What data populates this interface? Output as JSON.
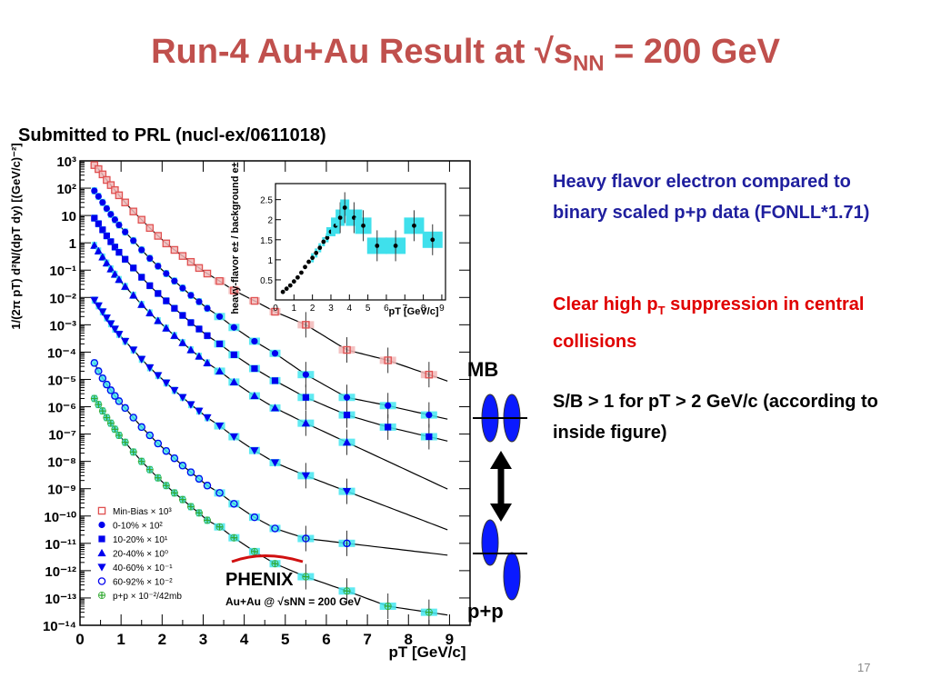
{
  "slide": {
    "title": "Run-4 Au+Au Result at √s",
    "title_sub": "NN",
    "title_tail": " = 200 GeV",
    "submitted": "Submitted to PRL (nucl-ex/0611018)",
    "note_blue": "Heavy flavor electron compared to binary scaled p+p data (FONLL*1.71)",
    "note_red_pre": "Clear high p",
    "note_red_sub": "T",
    "note_red_post": " suppression in central collisions",
    "note_black": "S/B > 1 for pT > 2 GeV/c (according to inside figure)",
    "label_mb": "MB",
    "label_pp": "p+p",
    "page_number": "17",
    "colors": {
      "title": "#c0504d",
      "blue_note": "#1f1f9e",
      "red_note": "#e00000",
      "nucleus": "#0a1aff"
    }
  },
  "chart_data": [
    {
      "type": "scatter",
      "log_y": true,
      "xlim": [
        0,
        9.5
      ],
      "ylim": [
        1e-14,
        1000.0
      ],
      "x_ticks": [
        "0",
        "1",
        "2",
        "3",
        "4",
        "5",
        "6",
        "7",
        "8",
        "9"
      ],
      "y_ticks": [
        "10⁻¹⁴",
        "10⁻¹³",
        "10⁻¹²",
        "10⁻¹¹",
        "10⁻¹⁰",
        "10⁻⁹",
        "10⁻⁸",
        "10⁻⁷",
        "10⁻⁶",
        "10⁻⁵",
        "10⁻⁴",
        "10⁻³",
        "10⁻²",
        "10⁻¹",
        "1",
        "10",
        "10²",
        "10³"
      ],
      "xlabel": "pT [GeV/c]",
      "ylabel": "1/(2π pT) d²N/(dpT dy) [(GeV/c)⁻²]",
      "experiment": "PHENIX",
      "system": "Au+Au @ √sNN = 200 GeV",
      "legend_position": "bottom-left",
      "series": [
        {
          "name": "Min-Bias × 10³",
          "marker": "open-square",
          "color": "#e05050",
          "x": [
            0.35,
            0.45,
            0.55,
            0.65,
            0.75,
            0.85,
            0.95,
            1.1,
            1.3,
            1.5,
            1.7,
            1.9,
            2.1,
            2.3,
            2.5,
            2.7,
            2.9,
            3.1,
            3.4,
            3.75,
            4.25,
            4.75,
            5.5,
            6.5,
            7.5,
            8.5
          ],
          "y": [
            700,
            500,
            320,
            200,
            130,
            85,
            55,
            30,
            14,
            7,
            3.5,
            1.8,
            0.95,
            0.55,
            0.33,
            0.2,
            0.12,
            0.075,
            0.04,
            0.018,
            0.0075,
            0.003,
            0.001,
            0.00012,
            5e-05,
            1.5e-05
          ]
        },
        {
          "name": "0-10% × 10²",
          "marker": "filled-circle",
          "color": "#0000ee",
          "x": [
            0.35,
            0.45,
            0.55,
            0.65,
            0.75,
            0.85,
            0.95,
            1.1,
            1.3,
            1.5,
            1.7,
            1.9,
            2.1,
            2.3,
            2.5,
            2.7,
            2.9,
            3.1,
            3.4,
            3.75,
            4.25,
            4.75,
            5.5,
            6.5,
            7.5,
            8.5
          ],
          "y": [
            80,
            50,
            30,
            18,
            11,
            7,
            4.5,
            2.5,
            1.2,
            0.55,
            0.27,
            0.14,
            0.075,
            0.04,
            0.022,
            0.012,
            0.007,
            0.004,
            0.002,
            0.0008,
            0.00025,
            9e-05,
            1.5e-05,
            2.2e-06,
            1.1e-06,
            5e-07
          ]
        },
        {
          "name": "10-20% × 10¹",
          "marker": "filled-square",
          "color": "#0000ee",
          "x": [
            0.35,
            0.45,
            0.55,
            0.65,
            0.75,
            0.85,
            0.95,
            1.1,
            1.3,
            1.5,
            1.7,
            1.9,
            2.1,
            2.3,
            2.5,
            2.7,
            2.9,
            3.1,
            3.4,
            3.75,
            4.25,
            4.75,
            5.5,
            6.5,
            7.5,
            8.5
          ],
          "y": [
            8,
            5,
            3,
            1.8,
            1.1,
            0.7,
            0.45,
            0.25,
            0.12,
            0.055,
            0.027,
            0.014,
            0.0075,
            0.004,
            0.0022,
            0.0012,
            0.0007,
            0.0004,
            0.0002,
            8e-05,
            2.5e-05,
            9e-06,
            2.2e-06,
            5e-07,
            1.8e-07,
            8e-08
          ]
        },
        {
          "name": "20-40% × 10⁰",
          "marker": "filled-triangle-up",
          "color": "#0000ee",
          "x": [
            0.35,
            0.45,
            0.55,
            0.65,
            0.75,
            0.85,
            0.95,
            1.1,
            1.3,
            1.5,
            1.7,
            1.9,
            2.1,
            2.3,
            2.5,
            2.7,
            2.9,
            3.1,
            3.4,
            3.75,
            4.25,
            4.75,
            5.5,
            6.5
          ],
          "y": [
            0.8,
            0.5,
            0.3,
            0.18,
            0.11,
            0.07,
            0.045,
            0.025,
            0.012,
            0.0055,
            0.0027,
            0.0014,
            0.00075,
            0.0004,
            0.00022,
            0.00012,
            7e-05,
            4e-05,
            2e-05,
            8e-06,
            2.5e-06,
            9e-07,
            2.5e-07,
            5e-08
          ]
        },
        {
          "name": "40-60% × 10⁻¹",
          "marker": "filled-triangle-down",
          "color": "#0000ee",
          "x": [
            0.35,
            0.45,
            0.55,
            0.65,
            0.75,
            0.85,
            0.95,
            1.1,
            1.3,
            1.5,
            1.7,
            1.9,
            2.1,
            2.3,
            2.5,
            2.7,
            2.9,
            3.1,
            3.4,
            3.75,
            4.25,
            4.75,
            5.5,
            6.5
          ],
          "y": [
            0.008,
            0.005,
            0.003,
            0.0018,
            0.0011,
            0.0007,
            0.00045,
            0.00025,
            0.00012,
            5.5e-05,
            2.7e-05,
            1.4e-05,
            7.5e-06,
            4e-06,
            2.2e-06,
            1.2e-06,
            7e-07,
            4e-07,
            2e-07,
            8e-08,
            2.5e-08,
            9e-09,
            3e-09,
            8e-10
          ]
        },
        {
          "name": "60-92% × 10⁻²",
          "marker": "open-circle",
          "color": "#0000ee",
          "x": [
            0.35,
            0.45,
            0.55,
            0.65,
            0.75,
            0.85,
            0.95,
            1.1,
            1.3,
            1.5,
            1.7,
            1.9,
            2.1,
            2.3,
            2.5,
            2.7,
            2.9,
            3.1,
            3.4,
            3.75,
            4.25,
            4.75,
            5.5,
            6.5
          ],
          "y": [
            4e-05,
            2e-05,
            1.1e-05,
            6.5e-06,
            4e-06,
            2.5e-06,
            1.6e-06,
            9e-07,
            4e-07,
            1.8e-07,
            9e-08,
            4.5e-08,
            2.4e-08,
            1.3e-08,
            7e-09,
            4e-09,
            2.3e-09,
            1.3e-09,
            7e-10,
            2.8e-10,
            9e-11,
            3.5e-11,
            1.5e-11,
            1e-11
          ]
        },
        {
          "name": "p+p × 10⁻²/42mb",
          "marker": "open-cross",
          "color": "#33aa33",
          "x": [
            0.35,
            0.45,
            0.55,
            0.65,
            0.75,
            0.85,
            0.95,
            1.1,
            1.3,
            1.5,
            1.7,
            1.9,
            2.1,
            2.3,
            2.5,
            2.7,
            2.9,
            3.1,
            3.4,
            3.75,
            4.25,
            4.75,
            5.5,
            6.5,
            7.5,
            8.5
          ],
          "y": [
            2e-06,
            1.2e-06,
            7e-07,
            4e-07,
            2.5e-07,
            1.5e-07,
            9e-08,
            5e-08,
            2.2e-08,
            1e-08,
            5e-09,
            2.5e-09,
            1.3e-09,
            7e-10,
            4e-10,
            2.2e-10,
            1.3e-10,
            7e-11,
            4e-11,
            1.6e-11,
            5e-12,
            1.8e-12,
            6e-13,
            1.8e-13,
            5e-14,
            3e-14
          ]
        }
      ]
    },
    {
      "type": "scatter",
      "xlim": [
        0,
        9.2
      ],
      "ylim": [
        0,
        2.9
      ],
      "x_ticks": [
        "0",
        "1",
        "2",
        "3",
        "4",
        "5",
        "6",
        "7",
        "8",
        "9"
      ],
      "y_ticks": [
        "0.5",
        "1",
        "1.5",
        "2",
        "2.5"
      ],
      "xlabel": "pT [GeV/c]",
      "ylabel": "heavy-flavor e± / background e±",
      "series": [
        {
          "marker": "filled-circle",
          "color": "#000000",
          "x": [
            0.4,
            0.6,
            0.8,
            1.0,
            1.2,
            1.4,
            1.6,
            1.8,
            2.0,
            2.2,
            2.4,
            2.6,
            2.8,
            3.0,
            3.25,
            3.5,
            3.75,
            4.25,
            4.75,
            5.5,
            6.5,
            7.5,
            8.5
          ],
          "y": [
            0.2,
            0.28,
            0.36,
            0.46,
            0.56,
            0.68,
            0.82,
            0.95,
            1.05,
            1.17,
            1.3,
            1.45,
            1.55,
            1.7,
            1.85,
            2.05,
            2.3,
            2.05,
            1.85,
            1.35,
            1.35,
            1.85,
            1.5
          ]
        }
      ]
    }
  ]
}
